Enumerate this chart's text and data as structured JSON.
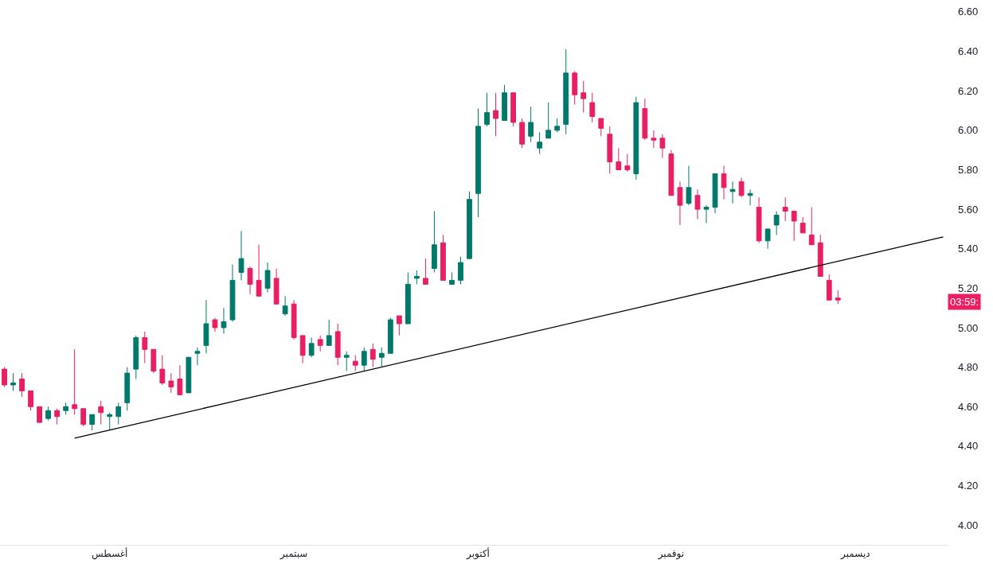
{
  "chart_data": {
    "type": "candlestick",
    "categories": [
      null,
      null,
      null,
      null,
      null,
      null,
      null,
      null,
      null,
      null,
      null,
      null,
      "أغسطس",
      null,
      null,
      null,
      null,
      null,
      null,
      null,
      null,
      null,
      null,
      null,
      null,
      null,
      null,
      null,
      null,
      null,
      null,
      null,
      null,
      "سبتمبر",
      null,
      null,
      null,
      null,
      null,
      null,
      null,
      null,
      null,
      null,
      null,
      null,
      null,
      null,
      null,
      null,
      null,
      null,
      null,
      null,
      "أكتوبر",
      null,
      null,
      null,
      null,
      null,
      null,
      null,
      null,
      null,
      null,
      null,
      null,
      null,
      null,
      null,
      null,
      null,
      null,
      null,
      null,
      null,
      "نوفمبر",
      null,
      null,
      null,
      null,
      null,
      null,
      null,
      null,
      null,
      null,
      null,
      null,
      null,
      null,
      null,
      null,
      null,
      null,
      null,
      null,
      "ديسمبر",
      null,
      null,
      null,
      null,
      null,
      null,
      null,
      null,
      null,
      null
    ],
    "ohlc": [
      [
        4.79,
        4.8,
        4.7,
        4.71
      ],
      [
        4.71,
        4.77,
        4.68,
        4.72
      ],
      [
        4.74,
        4.77,
        4.65,
        4.68
      ],
      [
        4.68,
        4.68,
        4.58,
        4.6
      ],
      [
        4.6,
        4.6,
        4.52,
        4.52
      ],
      [
        4.54,
        4.6,
        4.53,
        4.58
      ],
      [
        4.58,
        4.59,
        4.51,
        4.55
      ],
      [
        4.58,
        4.62,
        4.56,
        4.6
      ],
      [
        4.61,
        4.89,
        4.56,
        4.59
      ],
      [
        4.59,
        4.59,
        4.5,
        4.51
      ],
      [
        4.51,
        4.56,
        4.48,
        4.56
      ],
      [
        4.6,
        4.63,
        4.51,
        4.57
      ],
      [
        4.55,
        4.57,
        4.48,
        4.56
      ],
      [
        4.55,
        4.62,
        4.51,
        4.6
      ],
      [
        4.62,
        4.8,
        4.58,
        4.77
      ],
      [
        4.79,
        4.96,
        4.74,
        4.95
      ],
      [
        4.95,
        4.98,
        4.82,
        4.89
      ],
      [
        4.89,
        4.89,
        4.77,
        4.78
      ],
      [
        4.79,
        4.86,
        4.71,
        4.72
      ],
      [
        4.73,
        4.77,
        4.67,
        4.7
      ],
      [
        4.74,
        4.81,
        4.66,
        4.66
      ],
      [
        4.67,
        4.85,
        4.67,
        4.85
      ],
      [
        4.87,
        4.9,
        4.81,
        4.88
      ],
      [
        4.91,
        5.14,
        4.87,
        5.02
      ],
      [
        5.04,
        5.05,
        4.98,
        5.0
      ],
      [
        5.0,
        5.1,
        4.97,
        5.03
      ],
      [
        5.04,
        5.32,
        5.03,
        5.24
      ],
      [
        5.28,
        5.49,
        5.24,
        5.35
      ],
      [
        5.3,
        5.31,
        5.17,
        5.22
      ],
      [
        5.24,
        5.42,
        5.16,
        5.16
      ],
      [
        5.2,
        5.33,
        5.18,
        5.29
      ],
      [
        5.25,
        5.3,
        5.12,
        5.12
      ],
      [
        5.07,
        5.16,
        5.06,
        5.11
      ],
      [
        5.12,
        5.14,
        4.94,
        4.95
      ],
      [
        4.96,
        4.96,
        4.82,
        4.86
      ],
      [
        4.86,
        4.95,
        4.85,
        4.92
      ],
      [
        4.94,
        4.96,
        4.88,
        4.91
      ],
      [
        4.91,
        5.04,
        4.91,
        4.96
      ],
      [
        4.98,
        5.02,
        4.81,
        4.85
      ],
      [
        4.85,
        4.88,
        4.78,
        4.86
      ],
      [
        4.83,
        4.86,
        4.78,
        4.81
      ],
      [
        4.81,
        4.9,
        4.78,
        4.88
      ],
      [
        4.89,
        4.92,
        4.8,
        4.84
      ],
      [
        4.85,
        4.9,
        4.8,
        4.87
      ],
      [
        4.87,
        5.05,
        4.87,
        5.04
      ],
      [
        5.06,
        5.06,
        4.96,
        5.02
      ],
      [
        5.02,
        5.28,
        5.02,
        5.22
      ],
      [
        5.25,
        5.29,
        5.22,
        5.26
      ],
      [
        5.25,
        5.35,
        5.22,
        5.22
      ],
      [
        5.3,
        5.59,
        5.28,
        5.42
      ],
      [
        5.43,
        5.47,
        5.24,
        5.24
      ],
      [
        5.22,
        5.28,
        5.22,
        5.24
      ],
      [
        5.24,
        5.36,
        5.22,
        5.33
      ],
      [
        5.35,
        5.69,
        5.35,
        5.65
      ],
      [
        5.68,
        6.11,
        5.56,
        6.02
      ],
      [
        6.03,
        6.19,
        6.02,
        6.09
      ],
      [
        6.1,
        6.19,
        5.97,
        6.06
      ],
      [
        6.05,
        6.23,
        6.05,
        6.19
      ],
      [
        6.19,
        6.19,
        6.02,
        6.04
      ],
      [
        6.04,
        6.06,
        5.91,
        5.93
      ],
      [
        5.97,
        6.12,
        5.94,
        6.04
      ],
      [
        5.91,
        5.99,
        5.88,
        5.94
      ],
      [
        5.96,
        6.14,
        5.96,
        6.0
      ],
      [
        6.0,
        6.06,
        5.99,
        6.02
      ],
      [
        6.03,
        6.41,
        5.98,
        6.29
      ],
      [
        6.29,
        6.3,
        6.13,
        6.18
      ],
      [
        6.19,
        6.25,
        6.09,
        6.16
      ],
      [
        6.14,
        6.19,
        6.04,
        6.07
      ],
      [
        6.06,
        6.06,
        5.97,
        6.01
      ],
      [
        5.98,
        6.02,
        5.78,
        5.84
      ],
      [
        5.84,
        5.91,
        5.8,
        5.8
      ],
      [
        5.82,
        5.88,
        5.79,
        5.8
      ],
      [
        5.78,
        6.17,
        5.75,
        6.14
      ],
      [
        6.11,
        6.16,
        5.95,
        5.96
      ],
      [
        5.96,
        6.0,
        5.91,
        5.95
      ],
      [
        5.96,
        5.98,
        5.86,
        5.91
      ],
      [
        5.88,
        5.9,
        5.67,
        5.67
      ],
      [
        5.71,
        5.74,
        5.52,
        5.62
      ],
      [
        5.63,
        5.82,
        5.62,
        5.71
      ],
      [
        5.67,
        5.7,
        5.55,
        5.6
      ],
      [
        5.6,
        5.62,
        5.53,
        5.61
      ],
      [
        5.61,
        5.78,
        5.58,
        5.78
      ],
      [
        5.78,
        5.82,
        5.65,
        5.71
      ],
      [
        5.69,
        5.74,
        5.63,
        5.7
      ],
      [
        5.74,
        5.76,
        5.66,
        5.67
      ],
      [
        5.67,
        5.7,
        5.62,
        5.68
      ],
      [
        5.61,
        5.66,
        5.43,
        5.44
      ],
      [
        5.44,
        5.5,
        5.4,
        5.5
      ],
      [
        5.52,
        5.59,
        5.47,
        5.57
      ],
      [
        5.61,
        5.66,
        5.54,
        5.59
      ],
      [
        5.59,
        5.59,
        5.44,
        5.54
      ],
      [
        5.53,
        5.56,
        5.48,
        5.48
      ],
      [
        5.47,
        5.61,
        5.42,
        5.42
      ],
      [
        5.43,
        5.47,
        5.26,
        5.26
      ],
      [
        5.24,
        5.27,
        5.14,
        5.14
      ],
      [
        5.15,
        5.19,
        5.12,
        5.14
      ],
      null,
      null,
      null,
      null,
      null,
      null,
      null,
      null,
      null,
      null,
      null,
      null
    ],
    "colors": [
      "#e91e63",
      "#00796b",
      "#e91e63",
      "#e91e63",
      "#e91e63",
      "#00796b",
      "#e91e63",
      "#00796b",
      "#e91e63",
      "#e91e63",
      "#00796b",
      "#e91e63",
      "#00796b",
      "#00796b",
      "#00796b",
      "#00796b",
      "#e91e63",
      "#e91e63",
      "#e91e63",
      "#e91e63",
      "#e91e63",
      "#00796b",
      "#00796b",
      "#00796b",
      "#e91e63",
      "#00796b",
      "#00796b",
      "#00796b",
      "#e91e63",
      "#e91e63",
      "#00796b",
      "#e91e63",
      "#00796b",
      "#e91e63",
      "#e91e63",
      "#00796b",
      "#e91e63",
      "#00796b",
      "#e91e63",
      "#00796b",
      "#e91e63",
      "#00796b",
      "#e91e63",
      "#00796b",
      "#00796b",
      "#e91e63",
      "#00796b",
      "#00796b",
      "#e91e63",
      "#00796b",
      "#e91e63",
      "#00796b",
      "#00796b",
      "#00796b",
      "#00796b",
      "#00796b",
      "#e91e63",
      "#00796b",
      "#e91e63",
      "#e91e63",
      "#00796b",
      "#00796b",
      "#00796b",
      "#00796b",
      "#00796b",
      "#e91e63",
      "#e91e63",
      "#e91e63",
      "#e91e63",
      "#e91e63",
      "#e91e63",
      "#e91e63",
      "#00796b",
      "#e91e63",
      "#e91e63",
      "#e91e63",
      "#e91e63",
      "#e91e63",
      "#00796b",
      "#e91e63",
      "#00796b",
      "#00796b",
      "#e91e63",
      "#00796b",
      "#e91e63",
      "#00796b",
      "#e91e63",
      "#00796b",
      "#00796b",
      "#e91e63",
      "#e91e63",
      "#e91e63",
      "#e91e63",
      "#e91e63",
      "#e91e63",
      "#e91e63",
      null,
      null,
      null,
      null,
      null,
      null,
      null,
      null,
      null,
      null,
      null,
      null
    ],
    "series": [
      {
        "type": "line",
        "color": "#000000",
        "values": [
          null,
          null,
          null,
          null,
          null,
          null,
          null,
          null,
          4.44,
          null,
          null,
          null,
          null,
          null,
          null,
          null,
          null,
          null,
          null,
          null,
          null,
          null,
          null,
          null,
          null,
          null,
          null,
          null,
          null,
          null,
          null,
          null,
          null,
          null,
          null,
          null,
          null,
          null,
          null,
          null,
          null,
          null,
          null,
          null,
          null,
          null,
          null,
          null,
          null,
          null,
          null,
          null,
          null,
          null,
          null,
          null,
          null,
          null,
          null,
          null,
          null,
          null,
          null,
          null,
          null,
          null,
          null,
          null,
          null,
          null,
          null,
          null,
          null,
          null,
          null,
          null,
          null,
          null,
          null,
          null,
          null,
          null,
          null,
          null,
          null,
          null,
          null,
          null,
          null,
          null,
          null,
          null,
          null,
          null,
          null,
          null,
          null,
          null,
          null,
          null,
          null,
          null,
          null,
          null,
          null,
          null,
          null,
          5.46
        ]
      }
    ],
    "ylim": [
      3.9,
      6.66
    ],
    "yticks": [
      {
        "value": 4,
        "label": "4.00"
      },
      {
        "value": 4.2,
        "label": "4.20"
      },
      {
        "value": 4.4,
        "label": "4.40"
      },
      {
        "value": 4.6,
        "label": "4.60"
      },
      {
        "value": 4.8,
        "label": "4.80"
      },
      {
        "value": 5,
        "label": "5.00"
      },
      {
        "value": 5.2,
        "label": "5.20"
      },
      {
        "value": 5.4,
        "label": "5.40"
      },
      {
        "value": 5.6,
        "label": "5.60"
      },
      {
        "value": 5.8,
        "label": "5.80"
      },
      {
        "value": 6,
        "label": "6.00"
      },
      {
        "value": 6.2,
        "label": "6.20"
      },
      {
        "value": 6.4,
        "label": "6.40"
      },
      {
        "value": 6.6,
        "label": "6.60"
      }
    ],
    "annotations": [
      {
        "text": "03:59:",
        "y": 5.13
      }
    ],
    "grid": false
  }
}
